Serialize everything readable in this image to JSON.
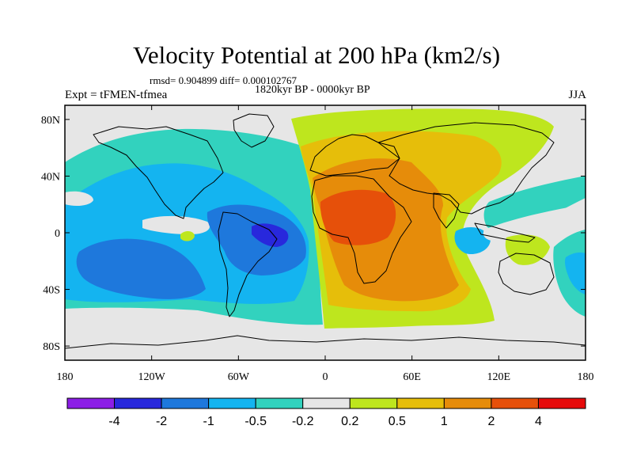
{
  "title": "Velocity Potential at 200 hPa (km2/s)",
  "stats_line": "rmsd= 0.904899 diff= 0.000102767",
  "period_line": "1820kyr BP - 0000kyr BP",
  "experiment_label": "Expt = tFMEN-tfmea",
  "season_label": "JJA",
  "x_ticks": [
    {
      "lon": -180,
      "label": "180"
    },
    {
      "lon": -120,
      "label": "120W"
    },
    {
      "lon": -60,
      "label": "60W"
    },
    {
      "lon": 0,
      "label": "0"
    },
    {
      "lon": 60,
      "label": "60E"
    },
    {
      "lon": 120,
      "label": "120E"
    },
    {
      "lon": 180,
      "label": "180"
    }
  ],
  "y_ticks": [
    {
      "lat": 80,
      "label": "80N"
    },
    {
      "lat": 40,
      "label": "40N"
    },
    {
      "lat": 0,
      "label": "0"
    },
    {
      "lat": -40,
      "label": "40S"
    },
    {
      "lat": -80,
      "label": "80S"
    }
  ],
  "colorbar": {
    "colors": [
      "#8c1ee6",
      "#2828dc",
      "#1e78dc",
      "#14b4f0",
      "#32d2be",
      "#e6e6e6",
      "#bee61e",
      "#e6be0a",
      "#e68c0a",
      "#e6500a",
      "#e60a0a"
    ],
    "labels": [
      "-4",
      "-2",
      "-1",
      "-0.5",
      "-0.2",
      "0.2",
      "0.5",
      "1",
      "2",
      "4"
    ]
  },
  "colors": {
    "purple": "#8c1ee6",
    "dark_blue": "#2828dc",
    "blue": "#1e78dc",
    "light_blue": "#14b4f0",
    "cyan": "#32d2be",
    "neutral": "#e6e6e6",
    "lime": "#bee61e",
    "yellow": "#e6be0a",
    "orange": "#e68c0a",
    "red_orange": "#e6500a",
    "red": "#e60a0a"
  }
}
